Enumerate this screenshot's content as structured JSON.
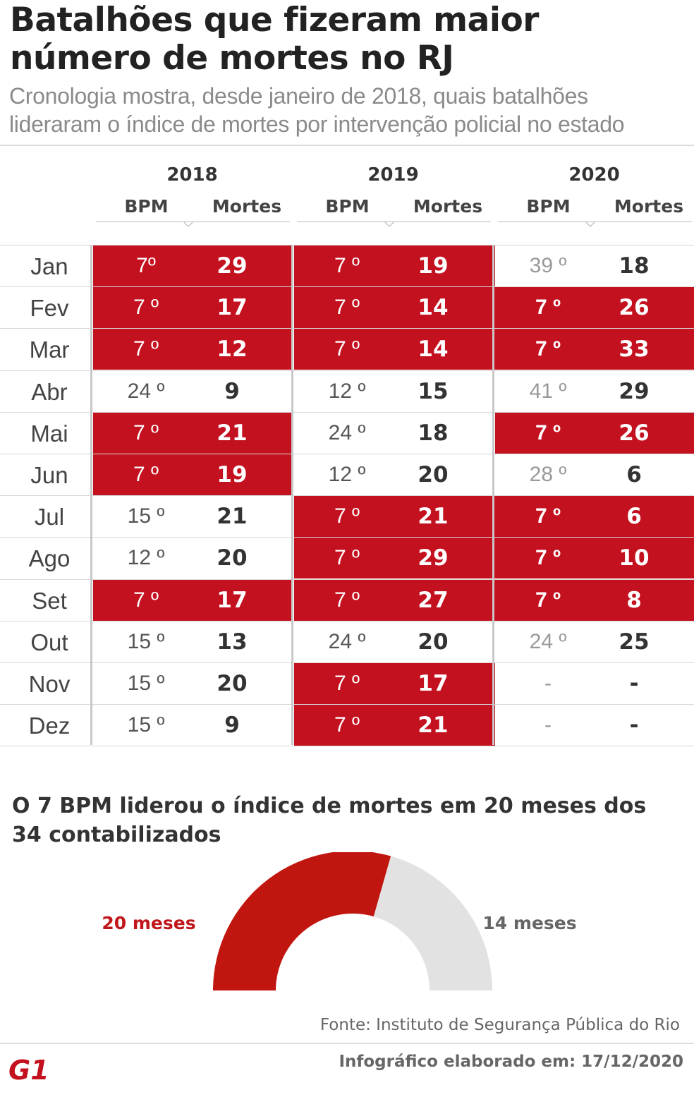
{
  "title": "Batalhões que fizeram maior número de mortes no RJ",
  "subtitle": "Cronologia mostra, desde janeiro de 2018, quais batalhões lideraram o índice de mortes por intervenção policial no estado",
  "table": {
    "col_bpm": "BPM",
    "col_mortes": "Mortes",
    "years": [
      "2018",
      "2019",
      "2020"
    ],
    "months": [
      "Jan",
      "Fev",
      "Mar",
      "Abr",
      "Mai",
      "Jun",
      "Jul",
      "Ago",
      "Set",
      "Out",
      "Nov",
      "Dez"
    ],
    "rows": [
      [
        [
          "7º",
          "29"
        ],
        [
          "7 º",
          "19"
        ],
        [
          "39 º",
          "18"
        ]
      ],
      [
        [
          "7 º",
          "17"
        ],
        [
          "7 º",
          "14"
        ],
        [
          "7 º",
          "26"
        ]
      ],
      [
        [
          "7 º",
          "12"
        ],
        [
          "7 º",
          "14"
        ],
        [
          "7 º",
          "33"
        ]
      ],
      [
        [
          "24 º",
          "9"
        ],
        [
          "12 º",
          "15"
        ],
        [
          "41 º",
          "29"
        ]
      ],
      [
        [
          "7 º",
          "21"
        ],
        [
          "24 º",
          "18"
        ],
        [
          "7 º",
          "26"
        ]
      ],
      [
        [
          "7 º",
          "19"
        ],
        [
          "12 º",
          "20"
        ],
        [
          "28 º",
          "6"
        ]
      ],
      [
        [
          "15 º",
          "21"
        ],
        [
          "7 º",
          "21"
        ],
        [
          "7 º",
          "6"
        ]
      ],
      [
        [
          "12 º",
          "20"
        ],
        [
          "7 º",
          "29"
        ],
        [
          "7 º",
          "10"
        ]
      ],
      [
        [
          "7 º",
          "17"
        ],
        [
          "7 º",
          "27"
        ],
        [
          "7 º",
          "8"
        ]
      ],
      [
        [
          "15 º",
          "13"
        ],
        [
          "24 º",
          "20"
        ],
        [
          "24 º",
          "25"
        ]
      ],
      [
        [
          "15 º",
          "20"
        ],
        [
          "7 º",
          "17"
        ],
        [
          "-",
          "-"
        ]
      ],
      [
        [
          "15 º",
          "9"
        ],
        [
          "7 º",
          "21"
        ],
        [
          "-",
          "-"
        ]
      ]
    ]
  },
  "chart_data": {
    "type": "pie",
    "subtype": "half-donut",
    "title": "O 7 BPM liderou o índice de mortes em 20 meses dos 34 contabilizados",
    "categories": [
      "20 meses",
      "14 meses"
    ],
    "values": [
      20,
      14
    ],
    "colors": [
      "#c1160f",
      "#e2e2e2"
    ]
  },
  "colors": {
    "highlight": "#c4111f",
    "gauge_red": "#c1160f",
    "gauge_gray": "#e2e2e2",
    "brand": "#c4111f"
  },
  "footer": {
    "source": "Fonte: Instituto de Segurança Pública do Rio",
    "made": "Infográfico elaborado em: 17/12/2020",
    "logo_text": "G1"
  }
}
